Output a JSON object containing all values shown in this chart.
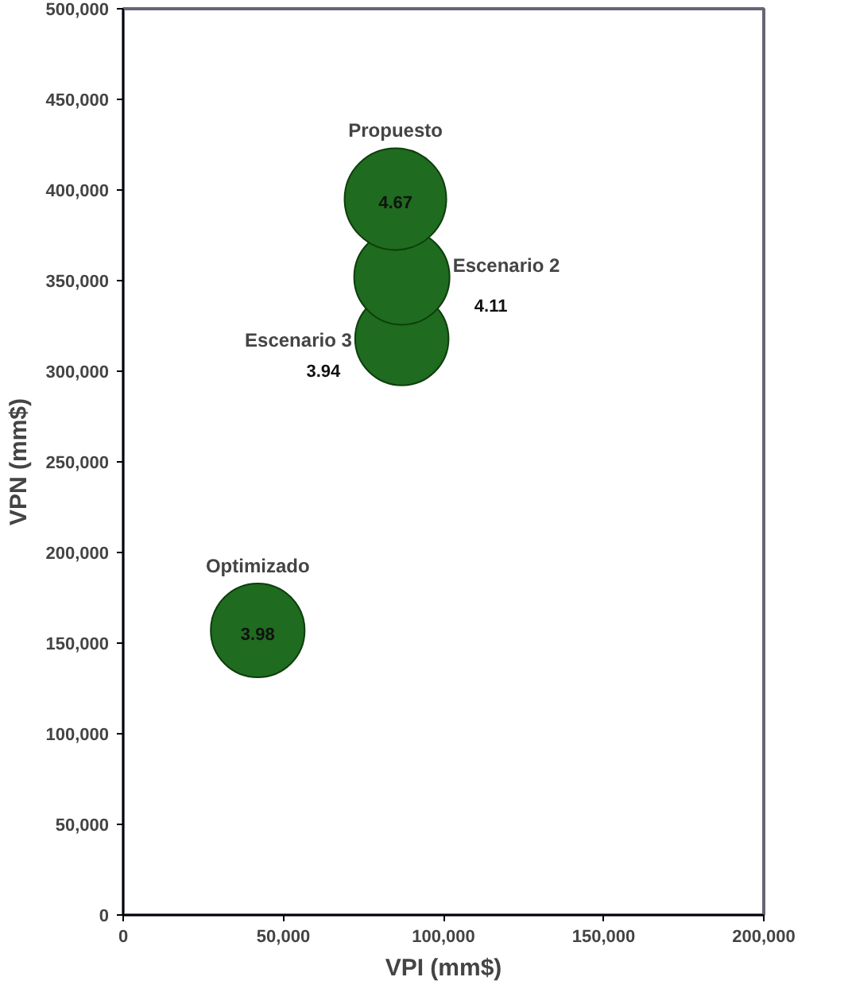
{
  "chart_data": {
    "type": "bubble",
    "xlabel": "VPI (mm$)",
    "ylabel": "VPN (mm$)",
    "xlim": [
      0,
      200000
    ],
    "xticks": [
      {
        "value": 0,
        "label": "0"
      },
      {
        "value": 50000,
        "label": "50,000"
      },
      {
        "value": 100000,
        "label": "100,000"
      },
      {
        "value": 150000,
        "label": "150,000"
      },
      {
        "value": 200000,
        "label": "200,000"
      }
    ],
    "ylim": [
      0,
      500000
    ],
    "yticks": [
      {
        "value": 0,
        "label": "0"
      },
      {
        "value": 50000,
        "label": "50,000"
      },
      {
        "value": 100000,
        "label": "100,000"
      },
      {
        "value": 150000,
        "label": "150,000"
      },
      {
        "value": 200000,
        "label": "200,000"
      },
      {
        "value": 250000,
        "label": "250,000"
      },
      {
        "value": 300000,
        "label": "300,000"
      },
      {
        "value": 350000,
        "label": "350,000"
      },
      {
        "value": 400000,
        "label": "400,000"
      },
      {
        "value": 450000,
        "label": "450,000"
      },
      {
        "value": 500000,
        "label": "500,000"
      }
    ],
    "grid": false,
    "marker": "circle",
    "series": [
      {
        "name": "Escenario 3",
        "color": "#1f6b1f",
        "x": [
          87000
        ],
        "values": [
          318000
        ],
        "sizes": [
          0.844
        ]
      },
      {
        "name": "Escenario 2",
        "color": "#1f6b1f",
        "x": [
          87000
        ],
        "values": [
          352000
        ],
        "sizes": [
          0.88
        ]
      },
      {
        "name": "Propuesto",
        "color": "#1f6b1f",
        "x": [
          85000
        ],
        "values": [
          395000
        ],
        "sizes": [
          1
        ]
      },
      {
        "name": "Optimizado",
        "color": "#1f6b1f",
        "x": [
          42000
        ],
        "values": [
          157000
        ],
        "sizes": [
          0.852
        ]
      }
    ],
    "annotations": [
      "3.94",
      "4.11",
      "4.67",
      "3.98"
    ]
  }
}
